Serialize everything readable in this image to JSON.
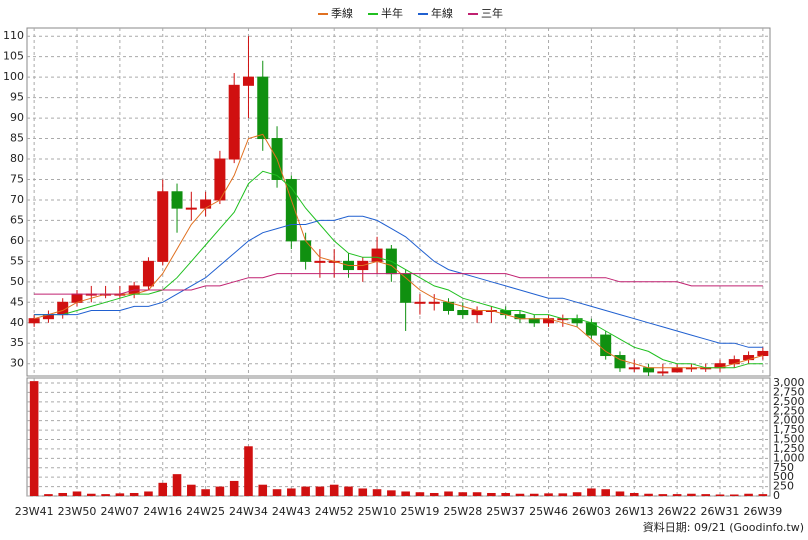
{
  "chart_data": [
    {
      "type": "candlestick",
      "categories": [
        "23W41",
        null,
        null,
        "23W50",
        null,
        null,
        "24W07",
        null,
        null,
        "24W16",
        null,
        null,
        "24W25",
        null,
        null,
        "24W34",
        null,
        null,
        "24W43",
        null,
        null,
        "24W52",
        null,
        null,
        "25W10",
        null,
        null,
        "25W19",
        null,
        null,
        "25W28",
        null,
        null,
        "25W37",
        null,
        null,
        "25W46",
        null,
        null,
        "26W03",
        null,
        null,
        "26W13",
        null,
        null,
        "26W22",
        null,
        null,
        "26W31",
        null,
        null,
        "26W39"
      ],
      "open": [
        40,
        41,
        42,
        45,
        47,
        47,
        47,
        47,
        49,
        55,
        72,
        68,
        68,
        70,
        80,
        98,
        100,
        85,
        75,
        60,
        55,
        55,
        55,
        53,
        55,
        58,
        52,
        45,
        45,
        45,
        43,
        42,
        43,
        43,
        42,
        41,
        40,
        41,
        41,
        40,
        37,
        32,
        29,
        29,
        28,
        28,
        29,
        29,
        29,
        30,
        31,
        32
      ],
      "high": [
        42,
        43,
        46,
        48,
        49,
        49,
        49,
        50,
        56,
        75,
        74,
        72,
        72,
        82,
        101,
        110,
        104,
        88,
        76,
        62,
        58,
        58,
        57,
        56,
        61,
        59,
        53,
        47,
        47,
        46,
        45,
        44,
        44,
        44,
        43,
        42,
        42,
        42,
        42,
        41,
        38,
        33,
        31,
        30,
        30,
        30,
        30,
        30,
        31,
        32,
        33,
        34
      ],
      "low": [
        39,
        40,
        41,
        44,
        45,
        46,
        46,
        46,
        48,
        54,
        62,
        65,
        66,
        69,
        79,
        90,
        82,
        73,
        58,
        53,
        51,
        51,
        51,
        50,
        52,
        50,
        38,
        42,
        43,
        42,
        41,
        40,
        40,
        41,
        40,
        39,
        39,
        39,
        39,
        36,
        31,
        28,
        28,
        27,
        27,
        28,
        28,
        28,
        28,
        29,
        30,
        31
      ],
      "close": [
        41,
        42,
        45,
        47,
        47,
        47,
        47,
        49,
        55,
        72,
        68,
        68,
        70,
        80,
        98,
        100,
        85,
        75,
        60,
        55,
        55,
        55,
        53,
        55,
        58,
        52,
        45,
        45,
        45,
        43,
        42,
        43,
        43,
        42,
        41,
        40,
        41,
        41,
        40,
        37,
        32,
        29,
        29,
        28,
        28,
        29,
        29,
        29,
        30,
        31,
        32,
        33
      ],
      "up_color": "#d01010",
      "down_color": "#109010",
      "series": [
        {
          "name": "季線",
          "color": "#e07020",
          "values": [
            41,
            42,
            43,
            45,
            46,
            47,
            47,
            47,
            48,
            52,
            58,
            64,
            68,
            70,
            76,
            85,
            86,
            80,
            70,
            60,
            56,
            55,
            54,
            54,
            55,
            54,
            51,
            48,
            46,
            45,
            44,
            43,
            43,
            42,
            41,
            41,
            41,
            40,
            39,
            36,
            33,
            31,
            30,
            29,
            29,
            29,
            29,
            29,
            29,
            30,
            31,
            32
          ]
        },
        {
          "name": "半年",
          "color": "#20c020",
          "values": [
            42,
            42,
            42,
            43,
            44,
            45,
            46,
            47,
            47,
            48,
            51,
            55,
            59,
            63,
            67,
            74,
            77,
            76,
            73,
            68,
            64,
            60,
            57,
            56,
            56,
            55,
            53,
            51,
            49,
            48,
            46,
            45,
            44,
            43,
            43,
            42,
            42,
            41,
            41,
            40,
            38,
            36,
            34,
            33,
            31,
            30,
            30,
            29,
            29,
            29,
            30,
            30
          ]
        },
        {
          "name": "年線",
          "color": "#2060d0",
          "values": [
            42,
            42,
            42,
            42,
            43,
            43,
            43,
            44,
            44,
            45,
            47,
            49,
            51,
            54,
            57,
            60,
            62,
            63,
            64,
            64,
            65,
            65,
            66,
            66,
            65,
            63,
            61,
            58,
            55,
            53,
            52,
            51,
            50,
            49,
            48,
            47,
            46,
            46,
            45,
            44,
            43,
            42,
            41,
            40,
            39,
            38,
            37,
            36,
            35,
            35,
            34,
            34
          ]
        },
        {
          "name": "三年",
          "color": "#c02070",
          "values": [
            47,
            47,
            47,
            47,
            47,
            47,
            47,
            48,
            48,
            48,
            48,
            48,
            49,
            49,
            50,
            51,
            51,
            52,
            52,
            52,
            52,
            52,
            52,
            52,
            52,
            52,
            52,
            52,
            52,
            52,
            52,
            52,
            52,
            52,
            51,
            51,
            51,
            51,
            51,
            51,
            51,
            50,
            50,
            50,
            50,
            50,
            49,
            49,
            49,
            49,
            49,
            49
          ]
        }
      ],
      "ylim": [
        27,
        112
      ],
      "yticks": [
        30,
        35,
        40,
        45,
        50,
        55,
        60,
        65,
        70,
        75,
        80,
        85,
        90,
        95,
        100,
        105,
        110
      ],
      "grid": true
    },
    {
      "type": "bar",
      "color": "#d01010",
      "values": [
        3050,
        50,
        80,
        120,
        60,
        50,
        70,
        80,
        120,
        350,
        580,
        300,
        180,
        250,
        400,
        1320,
        300,
        180,
        200,
        250,
        250,
        300,
        250,
        200,
        180,
        150,
        120,
        100,
        80,
        120,
        100,
        100,
        80,
        80,
        60,
        60,
        70,
        70,
        100,
        200,
        180,
        120,
        80,
        60,
        50,
        50,
        60,
        50,
        40,
        40,
        60,
        50
      ],
      "ylim": [
        0,
        3133
      ],
      "yticks": [
        0,
        250,
        500,
        750,
        {
          "value": 1000,
          "label": "1,000"
        },
        {
          "value": 1250,
          "label": "1,250"
        },
        {
          "value": 1500,
          "label": "1,500"
        },
        {
          "value": 1750,
          "label": "1,750"
        },
        {
          "value": 2000,
          "label": "2,000"
        },
        {
          "value": 2250,
          "label": "2,250"
        },
        {
          "value": 2500,
          "label": "2,500"
        },
        {
          "value": 2750,
          "label": "2,750"
        },
        {
          "value": 3000,
          "label": "3,000"
        }
      ],
      "grid": true
    }
  ],
  "footnote": "資料日期: 09/21 (Goodinfo.tw)"
}
